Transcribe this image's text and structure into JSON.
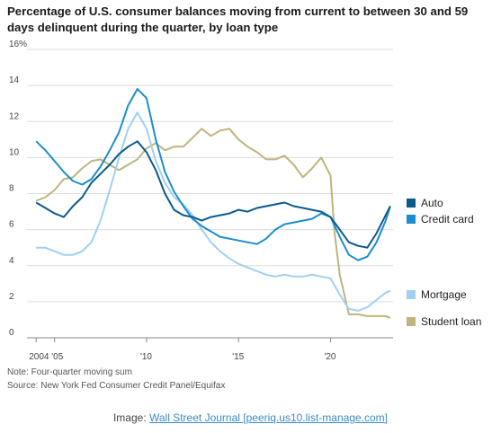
{
  "chart_data": {
    "type": "line",
    "title": "Percentage of U.S. consumer balances moving from current to between 30 and 59 days delinquent during the quarter, by loan type",
    "xlabel": "",
    "ylabel": "",
    "xlim": [
      2003.5,
      2023.4
    ],
    "ylim": [
      0,
      16
    ],
    "x_ticks": [
      {
        "value": 2004,
        "label": "2004 '05"
      },
      {
        "value": 2010,
        "label": "'10"
      },
      {
        "value": 2015,
        "label": "'15"
      },
      {
        "value": 2020,
        "label": "'20"
      }
    ],
    "y_ticks": [
      0,
      2,
      4,
      6,
      8,
      10,
      12,
      14,
      16
    ],
    "y_unit_label": "16%",
    "grid": "horizontal",
    "legend_placement": "right",
    "series": [
      {
        "name": "Auto",
        "color": "#0b5a8c",
        "points": [
          [
            2004,
            7.5
          ],
          [
            2004.5,
            7.2
          ],
          [
            2005,
            6.9
          ],
          [
            2005.5,
            6.7
          ],
          [
            2006,
            7.3
          ],
          [
            2006.5,
            7.8
          ],
          [
            2007,
            8.6
          ],
          [
            2007.5,
            9.1
          ],
          [
            2008,
            9.6
          ],
          [
            2008.5,
            10.2
          ],
          [
            2009,
            10.6
          ],
          [
            2009.5,
            10.9
          ],
          [
            2010,
            10.3
          ],
          [
            2010.5,
            9.3
          ],
          [
            2011,
            8.0
          ],
          [
            2011.5,
            7.1
          ],
          [
            2012,
            6.8
          ],
          [
            2012.5,
            6.7
          ],
          [
            2013,
            6.5
          ],
          [
            2013.5,
            6.7
          ],
          [
            2014,
            6.8
          ],
          [
            2014.5,
            6.9
          ],
          [
            2015,
            7.1
          ],
          [
            2015.5,
            7.0
          ],
          [
            2016,
            7.2
          ],
          [
            2016.5,
            7.3
          ],
          [
            2017,
            7.4
          ],
          [
            2017.5,
            7.5
          ],
          [
            2018,
            7.3
          ],
          [
            2018.5,
            7.2
          ],
          [
            2019,
            7.1
          ],
          [
            2019.5,
            7.0
          ],
          [
            2020,
            6.7
          ],
          [
            2020.5,
            6.0
          ],
          [
            2021,
            5.3
          ],
          [
            2021.5,
            5.1
          ],
          [
            2022,
            5.0
          ],
          [
            2022.5,
            5.8
          ],
          [
            2023,
            6.8
          ],
          [
            2023.25,
            7.3
          ]
        ]
      },
      {
        "name": "Credit card",
        "color": "#1b8dcc",
        "points": [
          [
            2004,
            10.9
          ],
          [
            2004.5,
            10.4
          ],
          [
            2005,
            9.8
          ],
          [
            2005.5,
            9.2
          ],
          [
            2006,
            8.7
          ],
          [
            2006.5,
            8.5
          ],
          [
            2007,
            8.8
          ],
          [
            2007.5,
            9.5
          ],
          [
            2008,
            10.4
          ],
          [
            2008.5,
            11.4
          ],
          [
            2009,
            12.9
          ],
          [
            2009.5,
            13.8
          ],
          [
            2010,
            13.3
          ],
          [
            2010.5,
            11.0
          ],
          [
            2011,
            9.2
          ],
          [
            2011.5,
            8.1
          ],
          [
            2012,
            7.3
          ],
          [
            2012.5,
            6.6
          ],
          [
            2013,
            6.2
          ],
          [
            2013.5,
            5.9
          ],
          [
            2014,
            5.6
          ],
          [
            2014.5,
            5.5
          ],
          [
            2015,
            5.4
          ],
          [
            2015.5,
            5.3
          ],
          [
            2016,
            5.2
          ],
          [
            2016.5,
            5.5
          ],
          [
            2017,
            6.0
          ],
          [
            2017.5,
            6.3
          ],
          [
            2018,
            6.4
          ],
          [
            2018.5,
            6.5
          ],
          [
            2019,
            6.6
          ],
          [
            2019.5,
            6.9
          ],
          [
            2020,
            6.7
          ],
          [
            2020.5,
            5.6
          ],
          [
            2021,
            4.6
          ],
          [
            2021.5,
            4.3
          ],
          [
            2022,
            4.5
          ],
          [
            2022.5,
            5.3
          ],
          [
            2023,
            6.5
          ],
          [
            2023.25,
            7.3
          ]
        ]
      },
      {
        "name": "Mortgage",
        "color": "#9fd1ef",
        "points": [
          [
            2004,
            5.0
          ],
          [
            2004.5,
            5.0
          ],
          [
            2005,
            4.8
          ],
          [
            2005.5,
            4.6
          ],
          [
            2006,
            4.6
          ],
          [
            2006.5,
            4.8
          ],
          [
            2007,
            5.3
          ],
          [
            2007.5,
            6.5
          ],
          [
            2008,
            8.2
          ],
          [
            2008.5,
            10.0
          ],
          [
            2009,
            11.6
          ],
          [
            2009.5,
            12.5
          ],
          [
            2010,
            11.6
          ],
          [
            2010.5,
            9.8
          ],
          [
            2011,
            8.6
          ],
          [
            2011.5,
            7.8
          ],
          [
            2012,
            7.4
          ],
          [
            2012.5,
            6.8
          ],
          [
            2013,
            6.0
          ],
          [
            2013.5,
            5.3
          ],
          [
            2014,
            4.8
          ],
          [
            2014.5,
            4.4
          ],
          [
            2015,
            4.1
          ],
          [
            2015.5,
            3.9
          ],
          [
            2016,
            3.7
          ],
          [
            2016.5,
            3.5
          ],
          [
            2017,
            3.4
          ],
          [
            2017.5,
            3.5
          ],
          [
            2018,
            3.4
          ],
          [
            2018.5,
            3.4
          ],
          [
            2019,
            3.5
          ],
          [
            2019.5,
            3.4
          ],
          [
            2020,
            3.3
          ],
          [
            2020.5,
            2.4
          ],
          [
            2021,
            1.6
          ],
          [
            2021.5,
            1.5
          ],
          [
            2022,
            1.7
          ],
          [
            2022.5,
            2.1
          ],
          [
            2023,
            2.5
          ],
          [
            2023.25,
            2.6
          ]
        ]
      },
      {
        "name": "Student loan",
        "color": "#bfb47e",
        "points": [
          [
            2004,
            7.6
          ],
          [
            2004.5,
            7.8
          ],
          [
            2005,
            8.2
          ],
          [
            2005.5,
            8.8
          ],
          [
            2006,
            8.9
          ],
          [
            2006.5,
            9.4
          ],
          [
            2007,
            9.8
          ],
          [
            2007.5,
            9.9
          ],
          [
            2008,
            9.6
          ],
          [
            2008.5,
            9.3
          ],
          [
            2009,
            9.6
          ],
          [
            2009.5,
            9.9
          ],
          [
            2010,
            10.5
          ],
          [
            2010.5,
            10.8
          ],
          [
            2011,
            10.4
          ],
          [
            2011.5,
            10.6
          ],
          [
            2012,
            10.6
          ],
          [
            2012.5,
            11.1
          ],
          [
            2013,
            11.6
          ],
          [
            2013.5,
            11.2
          ],
          [
            2014,
            11.5
          ],
          [
            2014.5,
            11.6
          ],
          [
            2015,
            11.0
          ],
          [
            2015.5,
            10.6
          ],
          [
            2016,
            10.3
          ],
          [
            2016.5,
            9.9
          ],
          [
            2017,
            9.9
          ],
          [
            2017.5,
            10.1
          ],
          [
            2018,
            9.6
          ],
          [
            2018.5,
            8.9
          ],
          [
            2019,
            9.4
          ],
          [
            2019.5,
            10.0
          ],
          [
            2020,
            9.0
          ],
          [
            2020.2,
            6.0
          ],
          [
            2020.5,
            3.5
          ],
          [
            2021,
            1.3
          ],
          [
            2021.5,
            1.3
          ],
          [
            2022,
            1.2
          ],
          [
            2022.5,
            1.2
          ],
          [
            2023,
            1.2
          ],
          [
            2023.25,
            1.1
          ]
        ]
      }
    ]
  },
  "footer": {
    "note": "Note: Four-quarter moving sum",
    "source": "Source: New York Fed Consumer Credit Panel/Equifax",
    "credit_prefix": "Image: ",
    "credit_link": "Wall Street Journal [peeriq.us10.list-manage.com]"
  }
}
